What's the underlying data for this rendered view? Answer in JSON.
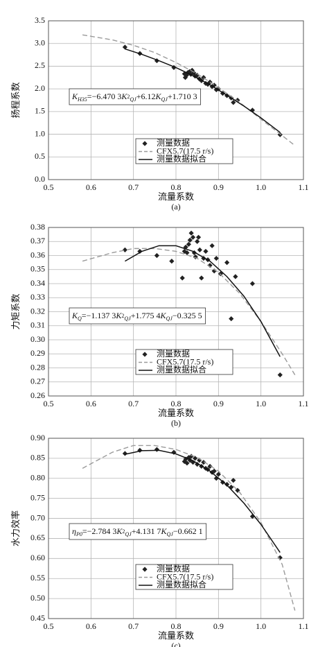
{
  "chart_data": [
    {
      "type": "line",
      "xlabel": "流量系数",
      "ylabel": "扬程系数",
      "caption": "(a)",
      "xlim": [
        0.5,
        1.1
      ],
      "ylim": [
        0,
        3.5
      ],
      "xticks": [
        0.5,
        0.6,
        0.7,
        0.8,
        0.9,
        {
          "value": 1.0,
          "label": "1.0"
        },
        1.1
      ],
      "yticks": [
        {
          "value": 0,
          "label": "0.0"
        },
        0.5,
        {
          "value": 1.0,
          "label": "1.0"
        },
        1.5,
        {
          "value": 2.0,
          "label": "2.0"
        },
        2.5,
        {
          "value": 3.0,
          "label": "3.0"
        },
        3.5
      ],
      "grid": true,
      "legend": "lower center",
      "annotation": [
        {
          "text": "K",
          "italic": true
        },
        {
          "text": "H35",
          "style": "sub",
          "italic": true
        },
        {
          "text": "=−6.470 3"
        },
        {
          "text": "K",
          "italic": true
        },
        {
          "text": "2",
          "style": "sup"
        },
        {
          "text": "QJ",
          "style": "sub",
          "italic": true
        },
        {
          "text": "+6.12"
        },
        {
          "text": "K",
          "italic": true
        },
        {
          "text": "QJ",
          "style": "sub",
          "italic": true
        },
        {
          "text": "+1.710 3"
        }
      ],
      "series": [
        {
          "name": "测量数据",
          "mark": "marker",
          "color": "#222222",
          "x": [
            0.68,
            0.715,
            0.755,
            0.795,
            0.82,
            0.822,
            0.825,
            0.828,
            0.832,
            0.835,
            0.838,
            0.842,
            0.845,
            0.85,
            0.855,
            0.86,
            0.865,
            0.87,
            0.875,
            0.88,
            0.885,
            0.89,
            0.895,
            0.9,
            0.91,
            0.92,
            0.93,
            0.935,
            0.945,
            0.98,
            1.045
          ],
          "values": [
            2.92,
            2.78,
            2.62,
            2.47,
            2.33,
            2.25,
            2.3,
            2.36,
            2.38,
            2.32,
            2.41,
            2.35,
            2.28,
            2.3,
            2.22,
            2.18,
            2.25,
            2.12,
            2.1,
            2.15,
            2.05,
            2.08,
            1.98,
            2.0,
            1.9,
            1.85,
            1.8,
            1.7,
            1.75,
            1.53,
            0.99
          ]
        },
        {
          "name": "CFX5.7(17.5 r/s)",
          "mark": "dashed",
          "color": "#9a9a9a",
          "x": [
            0.58,
            0.65,
            0.7,
            0.75,
            0.8,
            0.85,
            0.9,
            0.95,
            1.0,
            1.05,
            1.08
          ],
          "values": [
            3.19,
            3.08,
            2.96,
            2.8,
            2.58,
            2.33,
            2.03,
            1.7,
            1.33,
            0.97,
            0.75
          ]
        },
        {
          "name": "测量数据拟合",
          "mark": "solid",
          "color": "#111111",
          "x": [
            0.68,
            0.72,
            0.76,
            0.8,
            0.84,
            0.88,
            0.92,
            0.96,
            1.0,
            1.045
          ],
          "values": [
            2.88,
            2.76,
            2.62,
            2.47,
            2.29,
            2.09,
            1.86,
            1.62,
            1.36,
            1.04
          ]
        }
      ]
    },
    {
      "type": "line",
      "xlabel": "流量系数",
      "ylabel": "力矩系数",
      "caption": "(b)",
      "xlim": [
        0.5,
        1.1
      ],
      "ylim": [
        0.26,
        0.38
      ],
      "xticks": [
        0.5,
        0.6,
        0.7,
        0.8,
        0.9,
        {
          "value": 1.0,
          "label": "1.0"
        },
        1.1
      ],
      "yticks": [
        0.26,
        0.27,
        0.28,
        0.29,
        {
          "value": 0.3,
          "label": "0.30"
        },
        0.31,
        0.32,
        0.33,
        0.34,
        0.35,
        0.36,
        0.37,
        0.38
      ],
      "grid": true,
      "legend": "lower center",
      "annotation": [
        {
          "text": "K",
          "italic": true
        },
        {
          "text": "Q",
          "style": "sub",
          "italic": true
        },
        {
          "text": "=−1.137 3"
        },
        {
          "text": "K",
          "italic": true
        },
        {
          "text": "2",
          "style": "sup"
        },
        {
          "text": "QJ",
          "style": "sub",
          "italic": true
        },
        {
          "text": "+1.775 4"
        },
        {
          "text": "K",
          "italic": true
        },
        {
          "text": "QJ",
          "style": "sub",
          "italic": true
        },
        {
          "text": "−0.325 5"
        }
      ],
      "series": [
        {
          "name": "测量数据",
          "mark": "marker",
          "color": "#222222",
          "x": [
            0.68,
            0.715,
            0.755,
            0.79,
            0.815,
            0.82,
            0.823,
            0.826,
            0.83,
            0.833,
            0.836,
            0.84,
            0.843,
            0.846,
            0.85,
            0.853,
            0.856,
            0.86,
            0.865,
            0.87,
            0.875,
            0.88,
            0.885,
            0.89,
            0.895,
            0.905,
            0.92,
            0.93,
            0.94,
            0.98,
            1.045
          ],
          "values": [
            0.364,
            0.363,
            0.36,
            0.356,
            0.344,
            0.363,
            0.366,
            0.362,
            0.368,
            0.371,
            0.376,
            0.373,
            0.362,
            0.359,
            0.37,
            0.373,
            0.364,
            0.344,
            0.358,
            0.363,
            0.357,
            0.353,
            0.367,
            0.349,
            0.358,
            0.347,
            0.355,
            0.315,
            0.345,
            0.34,
            0.275
          ]
        },
        {
          "name": "CFX5.7(17.5 r/s)",
          "mark": "dashed",
          "color": "#9a9a9a",
          "x": [
            0.58,
            0.65,
            0.7,
            0.75,
            0.8,
            0.85,
            0.9,
            0.95,
            1.0,
            1.05,
            1.08
          ],
          "values": [
            0.356,
            0.362,
            0.365,
            0.365,
            0.363,
            0.358,
            0.348,
            0.333,
            0.313,
            0.29,
            0.275
          ]
        },
        {
          "name": "测量数据拟合",
          "mark": "solid",
          "color": "#111111",
          "x": [
            0.68,
            0.72,
            0.76,
            0.8,
            0.84,
            0.88,
            0.92,
            0.96,
            1.0,
            1.045
          ],
          "values": [
            0.356,
            0.363,
            0.367,
            0.367,
            0.363,
            0.356,
            0.345,
            0.331,
            0.313,
            0.288
          ]
        }
      ]
    },
    {
      "type": "line",
      "xlabel": "流量系数",
      "ylabel": "水力效率",
      "caption": "(c)",
      "xlim": [
        0.5,
        1.1
      ],
      "ylim": [
        0.45,
        0.9
      ],
      "xticks": [
        0.5,
        0.6,
        0.7,
        0.8,
        0.9,
        {
          "value": 1.0,
          "label": "1.0"
        },
        1.1
      ],
      "yticks": [
        0.45,
        {
          "value": 0.5,
          "label": "0.50"
        },
        0.55,
        {
          "value": 0.6,
          "label": "0.60"
        },
        0.65,
        {
          "value": 0.7,
          "label": "0.70"
        },
        0.75,
        {
          "value": 0.8,
          "label": "0.80"
        },
        0.85,
        {
          "value": 0.9,
          "label": "0.90"
        }
      ],
      "grid": true,
      "legend": "lower center",
      "annotation": [
        {
          "text": "η",
          "italic": true
        },
        {
          "text": "P0",
          "style": "sub",
          "italic": true
        },
        {
          "text": "=−2.784 3"
        },
        {
          "text": "K",
          "italic": true
        },
        {
          "text": "2",
          "style": "sup"
        },
        {
          "text": "QJ",
          "style": "sub",
          "italic": true
        },
        {
          "text": "+4.131 7"
        },
        {
          "text": "K",
          "italic": true
        },
        {
          "text": "QJ",
          "style": "sub",
          "italic": true
        },
        {
          "text": "−0.662 1"
        }
      ],
      "series": [
        {
          "name": "测量数据",
          "mark": "marker",
          "color": "#222222",
          "x": [
            0.68,
            0.715,
            0.755,
            0.795,
            0.82,
            0.823,
            0.826,
            0.83,
            0.833,
            0.836,
            0.84,
            0.845,
            0.85,
            0.855,
            0.86,
            0.865,
            0.87,
            0.875,
            0.88,
            0.885,
            0.89,
            0.895,
            0.9,
            0.91,
            0.92,
            0.93,
            0.935,
            0.945,
            0.98,
            1.045
          ],
          "values": [
            0.862,
            0.87,
            0.872,
            0.865,
            0.842,
            0.848,
            0.838,
            0.852,
            0.845,
            0.855,
            0.84,
            0.85,
            0.835,
            0.845,
            0.83,
            0.84,
            0.825,
            0.822,
            0.83,
            0.815,
            0.818,
            0.8,
            0.81,
            0.79,
            0.785,
            0.778,
            0.795,
            0.77,
            0.705,
            0.602
          ]
        },
        {
          "name": "CFX5.7(17.5 r/s)",
          "mark": "dashed",
          "color": "#9a9a9a",
          "x": [
            0.58,
            0.65,
            0.7,
            0.75,
            0.8,
            0.85,
            0.9,
            0.95,
            1.0,
            1.05,
            1.08
          ],
          "values": [
            0.825,
            0.865,
            0.882,
            0.882,
            0.872,
            0.852,
            0.818,
            0.765,
            0.69,
            0.585,
            0.47
          ]
        },
        {
          "name": "测量数据拟合",
          "mark": "solid",
          "color": "#111111",
          "x": [
            0.68,
            0.72,
            0.76,
            0.8,
            0.84,
            0.88,
            0.92,
            0.96,
            1.0,
            1.045
          ],
          "values": [
            0.86,
            0.869,
            0.87,
            0.861,
            0.844,
            0.818,
            0.783,
            0.738,
            0.685,
            0.615
          ]
        }
      ]
    }
  ]
}
